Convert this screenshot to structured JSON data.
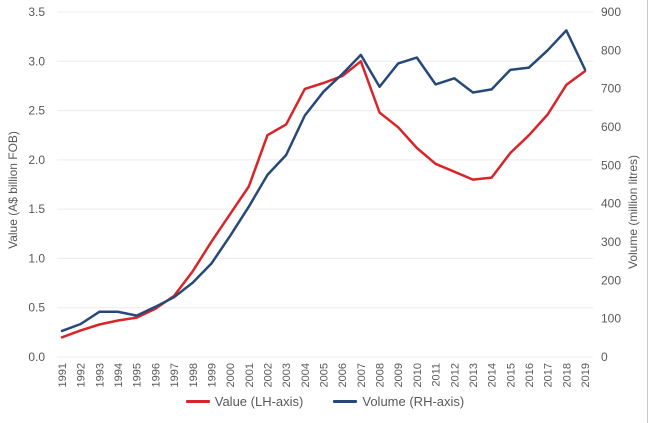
{
  "chart_data": {
    "type": "line",
    "x": [
      1991,
      1992,
      1993,
      1994,
      1995,
      1996,
      1997,
      1998,
      1999,
      2000,
      2001,
      2002,
      2003,
      2004,
      2005,
      2006,
      2007,
      2008,
      2009,
      2010,
      2011,
      2012,
      2013,
      2014,
      2015,
      2016,
      2017,
      2018,
      2019
    ],
    "series": [
      {
        "name": "Value (LH-axis)",
        "axis": "left",
        "color": "#d92428",
        "values": [
          0.2,
          0.27,
          0.33,
          0.37,
          0.4,
          0.49,
          0.62,
          0.87,
          1.17,
          1.45,
          1.73,
          2.25,
          2.36,
          2.72,
          2.78,
          2.85,
          3.0,
          2.48,
          2.33,
          2.12,
          1.96,
          1.88,
          1.8,
          1.82,
          2.07,
          2.25,
          2.46,
          2.76,
          2.9
        ]
      },
      {
        "name": "Volume (RH-axis)",
        "axis": "right",
        "color": "#27497a",
        "values": [
          68,
          86,
          118,
          118,
          108,
          131,
          156,
          194,
          244,
          316,
          392,
          475,
          527,
          630,
          692,
          738,
          788,
          705,
          766,
          781,
          711,
          727,
          690,
          698,
          749,
          755,
          800,
          852,
          750
        ]
      }
    ],
    "left_axis": {
      "label": "Value (A$ billion FOB)",
      "min": 0,
      "max": 3.5,
      "step": 0.5,
      "tick_labels": [
        "0.0",
        "0.5",
        "1.0",
        "1.5",
        "2.0",
        "2.5",
        "3.0",
        "3.5"
      ]
    },
    "right_axis": {
      "label": "Volume (million litres)",
      "min": 0,
      "max": 900,
      "step": 100,
      "tick_labels": [
        "0",
        "100",
        "200",
        "300",
        "400",
        "500",
        "600",
        "700",
        "800",
        "900"
      ]
    },
    "grid": "horizontal",
    "legend_position": "bottom",
    "styles": {
      "grid_color": "#ececec",
      "tick_text_color": "#595959",
      "background": "#ffffff"
    }
  }
}
